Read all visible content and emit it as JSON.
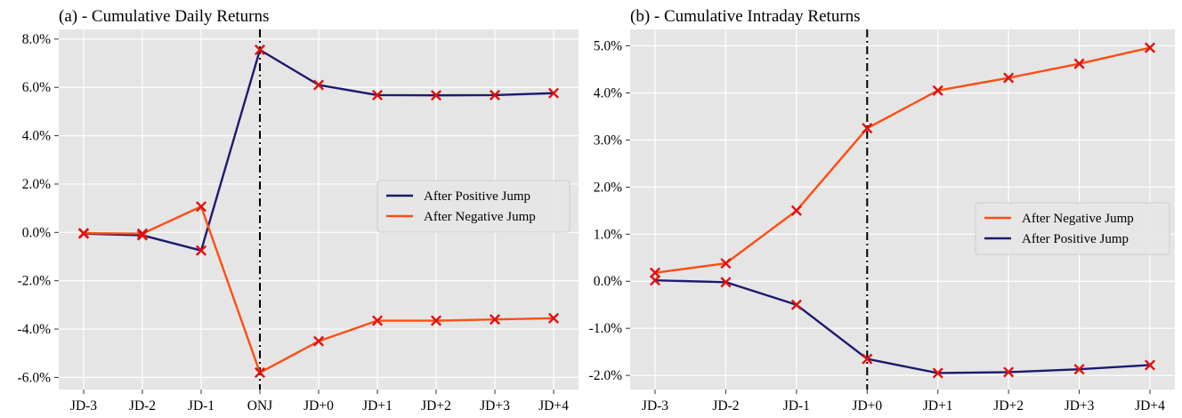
{
  "chart_data": [
    {
      "type": "line",
      "title": "(a) - Cumulative Daily Returns",
      "categories": [
        "JD-3",
        "JD-2",
        "JD-1",
        "ONJ",
        "JD+0",
        "JD+1",
        "JD+2",
        "JD+3",
        "JD+4"
      ],
      "ylim": [
        -6.5,
        8.4
      ],
      "yticks": [
        -6,
        -4,
        -2,
        0,
        2,
        4,
        6,
        8
      ],
      "ytick_labels": [
        "-6.0%",
        "-4.0%",
        "-2.0%",
        "0.0%",
        "2.0%",
        "4.0%",
        "6.0%",
        "8.0%"
      ],
      "vline_category": "ONJ",
      "grid": true,
      "legend": "center-right",
      "series": [
        {
          "name": "After Positive Jump",
          "color": "#1c1a6e",
          "values": [
            -0.05,
            -0.12,
            -0.75,
            7.55,
            6.1,
            5.68,
            5.67,
            5.68,
            5.76
          ]
        },
        {
          "name": "After Negative Jump",
          "color": "#ff4d12",
          "values": [
            -0.03,
            -0.05,
            1.07,
            -5.8,
            -4.5,
            -3.65,
            -3.65,
            -3.6,
            -3.55
          ]
        }
      ]
    },
    {
      "type": "line",
      "title": "(b) - Cumulative Intraday Returns",
      "categories": [
        "JD-3",
        "JD-2",
        "JD-1",
        "JD+0",
        "JD+1",
        "JD+2",
        "JD+3",
        "JD+4"
      ],
      "ylim": [
        -2.3,
        5.35
      ],
      "yticks": [
        -2,
        -1,
        0,
        1,
        2,
        3,
        4,
        5
      ],
      "ytick_labels": [
        "-2.0%",
        "-1.0%",
        "0.0%",
        "1.0%",
        "2.0%",
        "3.0%",
        "4.0%",
        "5.0%"
      ],
      "vline_category": "JD+0",
      "grid": true,
      "legend": "center-right",
      "series": [
        {
          "name": "After Negative Jump",
          "color": "#ff4d12",
          "values": [
            0.18,
            0.38,
            1.5,
            3.25,
            4.05,
            4.32,
            4.62,
            4.96
          ]
        },
        {
          "name": "After Positive Jump",
          "color": "#1c1a6e",
          "values": [
            0.02,
            -0.02,
            -0.5,
            -1.65,
            -1.95,
            -1.93,
            -1.87,
            -1.78
          ]
        }
      ]
    }
  ],
  "colors": {
    "plot_background": "#e5e5e5",
    "grid": "#ffffff",
    "marker": "#e3100f",
    "vline": "#000000"
  }
}
